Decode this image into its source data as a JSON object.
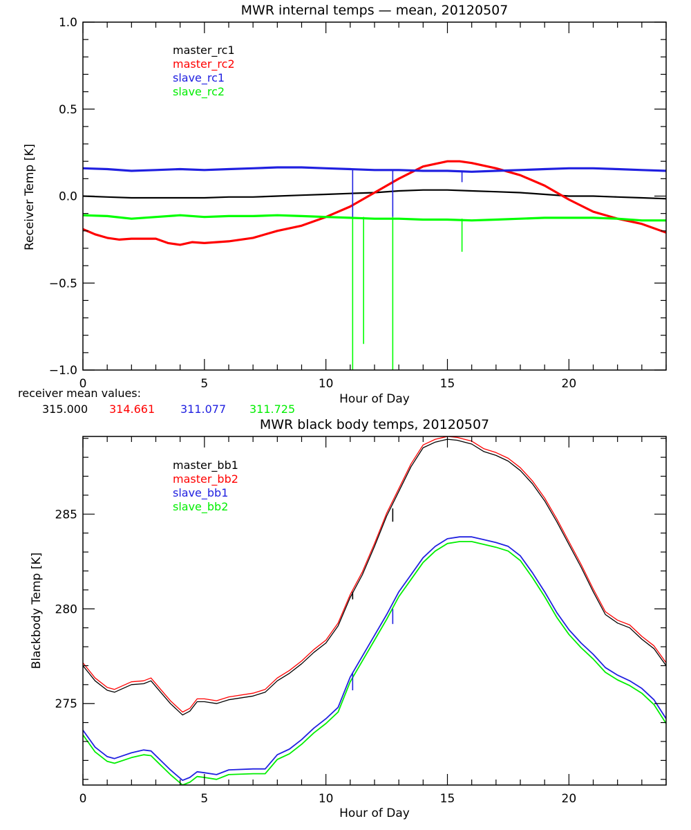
{
  "chart_data": [
    {
      "type": "line",
      "title": "MWR internal temps — mean, 20120507",
      "xlabel": "Hour of Day",
      "ylabel": "Receiver Temp [K]",
      "xlim": [
        0,
        24
      ],
      "ylim": [
        -1.0,
        1.0
      ],
      "x_major_ticks": [
        0,
        5,
        10,
        15,
        20
      ],
      "x_tick_labels": [
        "0",
        "5",
        "10",
        "15",
        "20"
      ],
      "y_major_ticks": [
        -1.0,
        -0.5,
        0.0,
        0.5,
        1.0
      ],
      "y_tick_labels": [
        "−1.0",
        "−0.5",
        "0.0",
        "0.5",
        "1.0"
      ],
      "x_minor_step": 1,
      "y_minor_step": 0.1,
      "grid": false,
      "legend_position": "top-left",
      "legend": [
        "master_rc1",
        "master_rc2",
        "slave_rc1",
        "slave_rc2"
      ],
      "annotation_label": "receiver mean values:",
      "annotation_values": [
        "315.000",
        "314.661",
        "311.077",
        "311.725"
      ],
      "series": [
        {
          "name": "master_rc1",
          "color": "#000000",
          "x": [
            0,
            1,
            2,
            3,
            4,
            5,
            6,
            7,
            8,
            9,
            10,
            11,
            12,
            13,
            14,
            15,
            16,
            17,
            18,
            19,
            20,
            21,
            22,
            23,
            24
          ],
          "y": [
            0.0,
            -0.005,
            -0.01,
            -0.01,
            -0.01,
            -0.01,
            -0.005,
            -0.005,
            0.0,
            0.005,
            0.01,
            0.015,
            0.02,
            0.03,
            0.035,
            0.035,
            0.03,
            0.025,
            0.02,
            0.01,
            0.0,
            0.0,
            -0.005,
            -0.01,
            -0.015
          ]
        },
        {
          "name": "master_rc2",
          "color": "#ff0000",
          "x": [
            0,
            0.5,
            1,
            1.5,
            2,
            3,
            3.5,
            4,
            4.5,
            5,
            6,
            7,
            8,
            9,
            10,
            11,
            12,
            13,
            14,
            15,
            15.5,
            16,
            17,
            18,
            19,
            20,
            21,
            22,
            23,
            24
          ],
          "y": [
            -0.19,
            -0.22,
            -0.24,
            -0.25,
            -0.245,
            -0.245,
            -0.27,
            -0.28,
            -0.265,
            -0.27,
            -0.26,
            -0.24,
            -0.2,
            -0.17,
            -0.12,
            -0.06,
            0.02,
            0.1,
            0.17,
            0.2,
            0.2,
            0.19,
            0.16,
            0.12,
            0.06,
            -0.02,
            -0.09,
            -0.13,
            -0.16,
            -0.21
          ]
        },
        {
          "name": "slave_rc1",
          "color": "#2020e0",
          "x": [
            0,
            1,
            2,
            3,
            4,
            5,
            6,
            7,
            8,
            9,
            10,
            11,
            12,
            13,
            14,
            15,
            16,
            17,
            18,
            19,
            20,
            21,
            22,
            23,
            24
          ],
          "y": [
            0.16,
            0.155,
            0.145,
            0.15,
            0.155,
            0.15,
            0.155,
            0.16,
            0.165,
            0.165,
            0.16,
            0.155,
            0.15,
            0.15,
            0.145,
            0.145,
            0.14,
            0.145,
            0.15,
            0.155,
            0.16,
            0.16,
            0.155,
            0.15,
            0.145
          ]
        },
        {
          "name": "slave_rc2",
          "color": "#00ff00",
          "x": [
            0,
            1,
            2,
            3,
            4,
            5,
            6,
            7,
            8,
            9,
            10,
            11,
            12,
            13,
            14,
            15,
            16,
            17,
            18,
            19,
            20,
            21,
            22,
            23,
            24
          ],
          "y": [
            -0.11,
            -0.115,
            -0.13,
            -0.12,
            -0.11,
            -0.12,
            -0.115,
            -0.115,
            -0.11,
            -0.115,
            -0.12,
            -0.125,
            -0.13,
            -0.13,
            -0.135,
            -0.135,
            -0.14,
            -0.135,
            -0.13,
            -0.125,
            -0.125,
            -0.125,
            -0.13,
            -0.14,
            -0.14
          ]
        }
      ],
      "spikes": [
        {
          "series": "slave_rc1",
          "x": 11.1,
          "from": 0.15,
          "to": -0.12
        },
        {
          "series": "slave_rc1",
          "x": 12.75,
          "from": 0.15,
          "to": -0.12
        },
        {
          "series": "slave_rc1",
          "x": 15.6,
          "from": 0.145,
          "to": 0.08
        },
        {
          "series": "slave_rc2",
          "x": 11.1,
          "from": -0.12,
          "to": -1.0
        },
        {
          "series": "slave_rc2",
          "x": 11.55,
          "from": -0.12,
          "to": -0.85
        },
        {
          "series": "slave_rc2",
          "x": 12.75,
          "from": -0.12,
          "to": -1.0
        },
        {
          "series": "slave_rc2",
          "x": 15.6,
          "from": -0.13,
          "to": -0.32
        }
      ]
    },
    {
      "type": "line",
      "title": "MWR black body temps, 20120507",
      "xlabel": "Hour of Day",
      "ylabel": "Blackbody Temp [K]",
      "xlim": [
        0,
        24
      ],
      "ylim": [
        270.7,
        289.1
      ],
      "x_major_ticks": [
        0,
        5,
        10,
        15,
        20
      ],
      "x_tick_labels": [
        "0",
        "5",
        "10",
        "15",
        "20"
      ],
      "y_major_ticks": [
        275,
        280,
        285
      ],
      "y_tick_labels": [
        "275",
        "280",
        "285"
      ],
      "x_minor_step": 1,
      "y_minor_step": 1,
      "grid": false,
      "legend_position": "top-left",
      "legend": [
        "master_bb1",
        "master_bb2",
        "slave_bb1",
        "slave_bb2"
      ],
      "series": [
        {
          "name": "master_bb1",
          "color": "#000000",
          "x": [
            0,
            0.5,
            1,
            1.3,
            2,
            2.5,
            2.8,
            3.2,
            3.6,
            4.1,
            4.4,
            4.7,
            5.0,
            5.5,
            6.0,
            7.0,
            7.5,
            8.0,
            8.5,
            9.0,
            9.5,
            10.0,
            10.5,
            11.0,
            11.5,
            12.0,
            12.5,
            13.0,
            13.5,
            14.0,
            14.5,
            15.0,
            15.4,
            16.0,
            16.5,
            17.0,
            17.5,
            18.0,
            18.5,
            19.0,
            19.5,
            20.0,
            20.5,
            21.0,
            21.5,
            22.0,
            22.5,
            23.0,
            23.5,
            24.0
          ],
          "y": [
            277.0,
            276.2,
            275.7,
            275.6,
            276.0,
            276.05,
            276.2,
            275.6,
            275.0,
            274.4,
            274.6,
            275.1,
            275.1,
            275.0,
            275.2,
            275.4,
            275.6,
            276.2,
            276.6,
            277.1,
            277.7,
            278.2,
            279.1,
            280.6,
            281.8,
            283.3,
            284.9,
            286.2,
            287.5,
            288.5,
            288.8,
            288.95,
            288.9,
            288.7,
            288.3,
            288.1,
            287.8,
            287.3,
            286.6,
            285.7,
            284.6,
            283.4,
            282.2,
            280.9,
            279.7,
            279.25,
            279.0,
            278.4,
            277.9,
            277.0
          ]
        },
        {
          "name": "master_bb2",
          "color": "#ff0000",
          "x": [
            0,
            0.5,
            1,
            1.3,
            2,
            2.5,
            2.8,
            3.2,
            3.6,
            4.1,
            4.4,
            4.7,
            5.0,
            5.5,
            6.0,
            7.0,
            7.5,
            8.0,
            8.5,
            9.0,
            9.5,
            10.0,
            10.5,
            11.0,
            11.5,
            12.0,
            12.5,
            13.0,
            13.5,
            14.0,
            14.5,
            15.0,
            15.4,
            16.0,
            16.5,
            17.0,
            17.5,
            18.0,
            18.5,
            19.0,
            19.5,
            20.0,
            20.5,
            21.0,
            21.5,
            22.0,
            22.5,
            23.0,
            23.5,
            24.0
          ],
          "y": [
            277.15,
            276.35,
            275.85,
            275.75,
            276.15,
            276.2,
            276.35,
            275.75,
            275.15,
            274.55,
            274.75,
            275.25,
            275.25,
            275.15,
            275.35,
            275.55,
            275.75,
            276.35,
            276.75,
            277.25,
            277.85,
            278.35,
            279.25,
            280.75,
            281.95,
            283.45,
            285.05,
            286.35,
            287.65,
            288.65,
            288.95,
            289.1,
            289.05,
            288.85,
            288.45,
            288.25,
            287.95,
            287.45,
            286.75,
            285.85,
            284.75,
            283.55,
            282.35,
            281.05,
            279.85,
            279.4,
            279.15,
            278.55,
            278.05,
            277.15
          ]
        },
        {
          "name": "slave_bb1",
          "color": "#2020e0",
          "x": [
            0,
            0.5,
            1,
            1.3,
            2,
            2.5,
            2.8,
            3.2,
            3.6,
            4.1,
            4.4,
            4.7,
            5.0,
            5.5,
            6.0,
            7.0,
            7.5,
            8.0,
            8.5,
            9.0,
            9.5,
            10.0,
            10.5,
            11.0,
            11.5,
            12.0,
            12.5,
            13.0,
            13.5,
            14.0,
            14.5,
            15.0,
            15.5,
            16.0,
            16.5,
            17.0,
            17.5,
            18.0,
            18.5,
            19.0,
            19.5,
            20.0,
            20.5,
            21.0,
            21.5,
            22.0,
            22.5,
            23.0,
            23.5,
            24.0
          ],
          "y": [
            273.6,
            272.7,
            272.2,
            272.1,
            272.4,
            272.55,
            272.5,
            272.0,
            271.5,
            270.95,
            271.1,
            271.4,
            271.35,
            271.25,
            271.5,
            271.55,
            271.55,
            272.3,
            272.6,
            273.1,
            273.7,
            274.2,
            274.8,
            276.4,
            277.5,
            278.6,
            279.7,
            280.9,
            281.8,
            282.7,
            283.3,
            283.7,
            283.8,
            283.8,
            283.65,
            283.5,
            283.3,
            282.8,
            281.9,
            280.9,
            279.8,
            278.9,
            278.2,
            277.6,
            276.9,
            276.5,
            276.2,
            275.8,
            275.2,
            274.2
          ]
        },
        {
          "name": "slave_bb2",
          "color": "#00ee00",
          "x": [
            0,
            0.5,
            1,
            1.3,
            2,
            2.5,
            2.8,
            3.2,
            3.6,
            4.1,
            4.4,
            4.7,
            5.0,
            5.5,
            6.0,
            7.0,
            7.5,
            8.0,
            8.5,
            9.0,
            9.5,
            10.0,
            10.5,
            11.0,
            11.5,
            12.0,
            12.5,
            13.0,
            13.5,
            14.0,
            14.5,
            15.0,
            15.5,
            16.0,
            16.5,
            17.0,
            17.5,
            18.0,
            18.5,
            19.0,
            19.5,
            20.0,
            20.5,
            21.0,
            21.5,
            22.0,
            22.5,
            23.0,
            23.5,
            24.0
          ],
          "y": [
            273.35,
            272.45,
            271.95,
            271.85,
            272.15,
            272.3,
            272.25,
            271.75,
            271.25,
            270.7,
            270.85,
            271.15,
            271.1,
            271.0,
            271.25,
            271.3,
            271.3,
            272.05,
            272.35,
            272.85,
            273.45,
            273.95,
            274.55,
            276.15,
            277.25,
            278.35,
            279.45,
            280.65,
            281.55,
            282.45,
            283.05,
            283.45,
            283.55,
            283.55,
            283.4,
            283.25,
            283.05,
            282.55,
            281.65,
            280.65,
            279.55,
            278.65,
            277.95,
            277.35,
            276.65,
            276.25,
            275.95,
            275.55,
            274.95,
            273.95
          ]
        }
      ],
      "spikes": [
        {
          "series": "master_bb1",
          "x": 11.1,
          "from": 280.9,
          "to": 280.5
        },
        {
          "series": "master_bb1",
          "x": 12.75,
          "from": 285.3,
          "to": 284.6
        },
        {
          "series": "slave_bb1",
          "x": 11.1,
          "from": 276.6,
          "to": 275.7
        },
        {
          "series": "slave_bb1",
          "x": 12.75,
          "from": 280.0,
          "to": 279.2
        }
      ]
    }
  ]
}
